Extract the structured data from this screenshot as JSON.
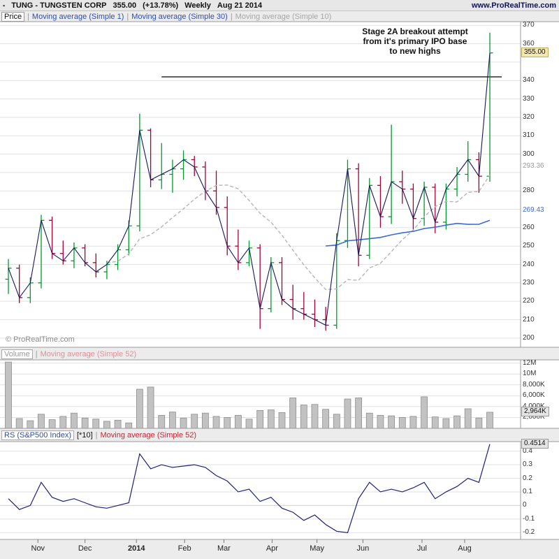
{
  "header": {
    "window_icon": "▪",
    "title": "TUNG - TUNGSTEN CORP",
    "last_price": "355.00",
    "change": "(+13.78%)",
    "timeframe": "Weekly",
    "date": "Aug 21 2014",
    "website": "www.ProRealTime.com"
  },
  "colors": {
    "up": "#009a2c",
    "down": "#a80033",
    "close_line": "#16165e",
    "ma10": "#b5b5b5",
    "ma30": "#3a6bd4",
    "volume_bar": "#c2c2c2",
    "volume_bar_border": "#8e8e8e",
    "rs_line": "#1f1f78",
    "grid": "#e1e1e1",
    "panel_border": "#9a9a9a",
    "last_badge_bg": "#f2e8b0",
    "last_badge_border": "#bfae5e",
    "gray_badge_bg": "#e4e4e4",
    "legend_blue": "#2f4cb0",
    "legend_gray": "#a6a6a6",
    "legend_pink": "#e08f9a",
    "legend_red": "#cc2233",
    "annotation_color": "#111111"
  },
  "price_panel": {
    "legend": [
      {
        "label": "Price",
        "style": "boxed"
      },
      {
        "label": "Moving average (Simple 1)",
        "style": "blue"
      },
      {
        "label": "Moving average (Simple 30)",
        "style": "blue"
      },
      {
        "label": "Moving average (Simple 10)",
        "style": "gray"
      }
    ],
    "annotation_lines": [
      "Stage 2A breakout attempt",
      "from it's primary IPO base",
      "to new highs"
    ],
    "watermark": "© ProRealTime.com"
  },
  "volume_panel": {
    "legend": [
      {
        "label": "Volume",
        "style": "boxed-gray"
      },
      {
        "label": "Moving average (Simple 52)",
        "style": "pink"
      }
    ]
  },
  "rs_panel": {
    "legend": [
      {
        "label": "RS (S&P500 Index)",
        "style": "boxed-blue"
      },
      {
        "label": "[*10]",
        "style": "plain"
      },
      {
        "label": "Moving average (Simple 52)",
        "style": "red"
      }
    ]
  },
  "x_axis": {
    "labels": [
      {
        "text": "Nov",
        "bar": 2.7
      },
      {
        "text": "Dec",
        "bar": 7.0
      },
      {
        "text": "2014",
        "bar": 11.7,
        "bold": true
      },
      {
        "text": "Feb",
        "bar": 16.1
      },
      {
        "text": "Mar",
        "bar": 19.7
      },
      {
        "text": "Apr",
        "bar": 24.1
      },
      {
        "text": "May",
        "bar": 28.2
      },
      {
        "text": "Jun",
        "bar": 32.4
      },
      {
        "text": "Jul",
        "bar": 37.8
      },
      {
        "text": "Aug",
        "bar": 41.7
      }
    ]
  },
  "chart_data": [
    {
      "type": "ohlc",
      "name": "Price weekly OHLC",
      "timeframe": "Weekly, Nov 2013 - Aug 21 2014",
      "ylim": [
        195,
        372
      ],
      "gridlines": [
        200,
        210,
        220,
        230,
        240,
        250,
        260,
        270,
        280,
        290,
        300,
        310,
        320,
        330,
        340,
        350,
        360,
        370
      ],
      "axis_labels": [
        {
          "text": "370",
          "value": 370
        },
        {
          "text": "360",
          "value": 360
        },
        {
          "text": "340",
          "value": 340
        },
        {
          "text": "330",
          "value": 330
        },
        {
          "text": "320",
          "value": 320
        },
        {
          "text": "310",
          "value": 310
        },
        {
          "text": "300",
          "value": 300
        },
        {
          "text": "280",
          "value": 280
        },
        {
          "text": "260",
          "value": 260
        },
        {
          "text": "250",
          "value": 250
        },
        {
          "text": "240",
          "value": 240
        },
        {
          "text": "230",
          "value": 230
        },
        {
          "text": "220",
          "value": 220
        },
        {
          "text": "210",
          "value": 210
        },
        {
          "text": "200",
          "value": 200
        }
      ],
      "special_labels": [
        {
          "text": "355.00",
          "value": 355.0,
          "style": "last"
        },
        {
          "text": "293.36",
          "value": 293.36,
          "style": "ma10"
        },
        {
          "text": "269.43",
          "value": 269.43,
          "style": "ma30"
        }
      ],
      "resistance_line": {
        "value": 342,
        "start_bar": 14
      },
      "overlays": [
        {
          "name": "Moving average (Simple 1)",
          "period": 1
        },
        {
          "name": "Moving average (Simple 10)",
          "period": 10
        },
        {
          "name": "Moving average (Simple 30)",
          "period": 30
        }
      ],
      "open": [
        232,
        238,
        222,
        230,
        264,
        246,
        242,
        249,
        241,
        236,
        240,
        248,
        261,
        313,
        286,
        289,
        292,
        297,
        293,
        280,
        271,
        250,
        241,
        249,
        216,
        241,
        221,
        216,
        213,
        210,
        207,
        253,
        292,
        245,
        283,
        266,
        285,
        281,
        265,
        282,
        263,
        281,
        289,
        297,
        288
      ],
      "high": [
        243,
        240,
        233,
        267,
        266,
        253,
        252,
        251,
        246,
        242,
        251,
        264,
        322,
        314,
        306,
        297,
        302,
        299,
        296,
        291,
        277,
        259,
        253,
        251,
        244,
        244,
        229,
        225,
        221,
        217,
        257,
        297,
        295,
        287,
        288,
        316,
        291,
        284,
        285,
        284,
        284,
        293,
        307,
        301,
        366
      ],
      "low": [
        224,
        219,
        219,
        227,
        243,
        240,
        238,
        239,
        233,
        232,
        237,
        245,
        258,
        282,
        281,
        279,
        286,
        288,
        275,
        267,
        245,
        237,
        239,
        205,
        214,
        218,
        210,
        210,
        206,
        204,
        205,
        249,
        239,
        243,
        260,
        262,
        273,
        259,
        261,
        257,
        259,
        277,
        285,
        279,
        285
      ],
      "close": [
        238,
        222,
        230,
        264,
        246,
        242,
        249,
        241,
        236,
        240,
        248,
        261,
        313,
        286,
        289,
        292,
        297,
        293,
        280,
        271,
        250,
        241,
        249,
        216,
        241,
        221,
        216,
        213,
        210,
        207,
        253,
        292,
        245,
        283,
        266,
        285,
        281,
        265,
        282,
        263,
        281,
        289,
        297,
        288,
        355
      ]
    },
    {
      "type": "bar",
      "name": "Volume",
      "unit": "K shares",
      "ylim": [
        0,
        12600
      ],
      "gridlines": [
        2000,
        4000,
        6000,
        8000,
        10000,
        12000
      ],
      "axis_labels": [
        {
          "text": "12M",
          "value": 12000
        },
        {
          "text": "10M",
          "value": 10000
        },
        {
          "text": "8,000K",
          "value": 8000
        },
        {
          "text": "6,000K",
          "value": 6000
        },
        {
          "text": "4,000K",
          "value": 4000
        },
        {
          "text": "2,000K",
          "value": 2000
        }
      ],
      "special_labels": [
        {
          "text": "2,964K",
          "value": 2964,
          "style": "gray-badge"
        }
      ],
      "values": [
        12200,
        1800,
        1400,
        2600,
        1600,
        2200,
        2800,
        1900,
        1700,
        1300,
        1500,
        1000,
        7200,
        7600,
        2400,
        3000,
        1900,
        2600,
        2800,
        2200,
        2000,
        2400,
        1700,
        3300,
        3400,
        2900,
        5600,
        4300,
        4400,
        3500,
        2600,
        5400,
        5600,
        2800,
        2400,
        2300,
        2000,
        2200,
        5800,
        2100,
        1800,
        2300,
        3600,
        1900,
        2964
      ]
    },
    {
      "type": "line",
      "name": "RS (S&P500 Index) [*10]",
      "ylim": [
        -0.25,
        0.47
      ],
      "gridlines": [
        -0.2,
        -0.1,
        0,
        0.1,
        0.2,
        0.3,
        0.4
      ],
      "axis_labels": [
        {
          "text": "0.4",
          "value": 0.4
        },
        {
          "text": "0.3",
          "value": 0.3
        },
        {
          "text": "0.2",
          "value": 0.2
        },
        {
          "text": "0.1",
          "value": 0.1
        },
        {
          "text": "0",
          "value": 0
        },
        {
          "text": "-0.1",
          "value": -0.1
        },
        {
          "text": "-0.2",
          "value": -0.2
        }
      ],
      "special_labels": [
        {
          "text": "0.4514",
          "value": 0.4514,
          "style": "gray-badge"
        }
      ],
      "values": [
        0.05,
        -0.03,
        0.0,
        0.17,
        0.06,
        0.03,
        0.05,
        0.02,
        -0.01,
        -0.02,
        0.0,
        0.02,
        0.38,
        0.27,
        0.3,
        0.28,
        0.29,
        0.3,
        0.28,
        0.22,
        0.18,
        0.1,
        0.12,
        0.03,
        0.06,
        -0.02,
        -0.05,
        -0.11,
        -0.07,
        -0.14,
        -0.19,
        -0.2,
        0.05,
        0.17,
        0.1,
        0.12,
        0.1,
        0.13,
        0.17,
        0.05,
        0.1,
        0.14,
        0.2,
        0.17,
        0.4514
      ]
    }
  ]
}
